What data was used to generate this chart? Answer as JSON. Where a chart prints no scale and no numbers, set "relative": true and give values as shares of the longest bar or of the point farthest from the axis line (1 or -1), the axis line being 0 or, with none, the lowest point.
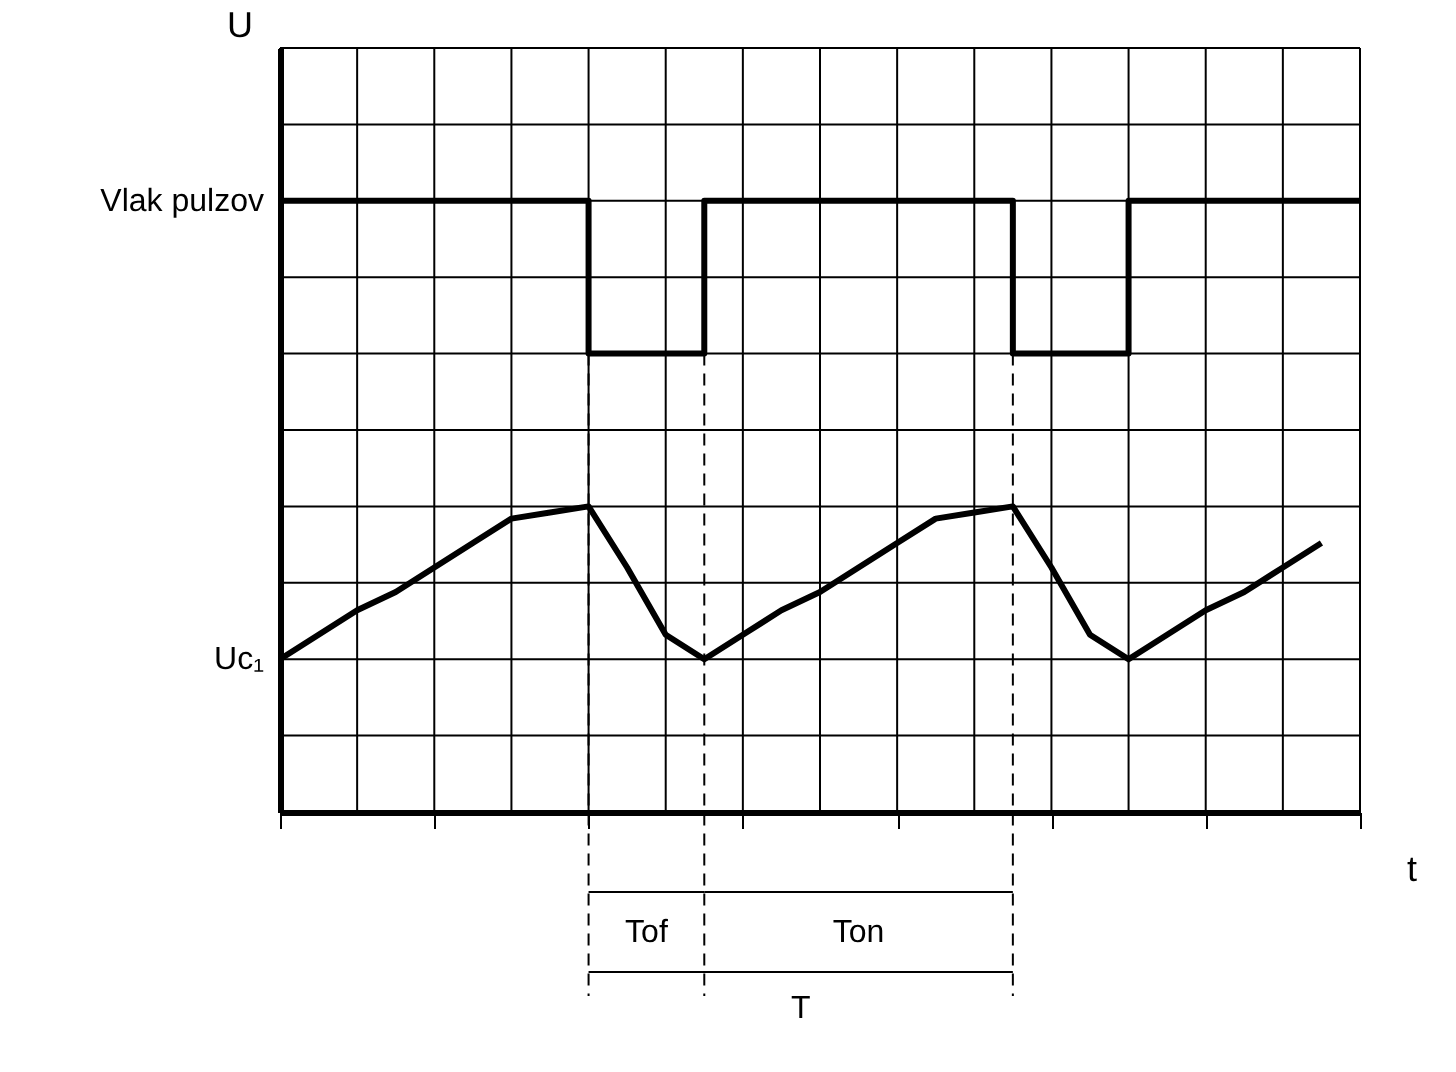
{
  "chart_data": {
    "type": "line",
    "relative": true,
    "xlabel": "t",
    "ylabel": "U",
    "grid": true,
    "categories": [
      null,
      null,
      null,
      null,
      null,
      null,
      null,
      null,
      null,
      null,
      null,
      null,
      null,
      null,
      null,
      null,
      null,
      null,
      null,
      null,
      null,
      null,
      null,
      null,
      null,
      null,
      null,
      null,
      null
    ],
    "series": [
      {
        "name": "Vlak pulzov",
        "type": "step",
        "color": "#000000",
        "values": [
          1,
          1,
          1,
          1,
          1,
          1,
          1,
          1,
          0.75,
          0.75,
          0.75,
          1,
          1,
          1,
          1,
          1,
          1,
          1,
          1,
          0.75,
          0.75,
          0.75,
          1,
          1,
          1,
          1,
          1,
          1,
          1
        ]
      },
      {
        "name": "Uc₁",
        "color": "#000000",
        "values": [
          0.25,
          0.29,
          0.33,
          0.36,
          0.4,
          0.44,
          0.48,
          0.49,
          0.5,
          0.4,
          0.29,
          0.25,
          0.29,
          0.33,
          0.36,
          0.4,
          0.44,
          0.48,
          0.49,
          0.5,
          0.4,
          0.29,
          0.25,
          0.29,
          0.33,
          0.36,
          0.4,
          0.44,
          null
        ]
      }
    ],
    "annotations": [
      "Tof",
      "Ton",
      "T"
    ]
  }
}
